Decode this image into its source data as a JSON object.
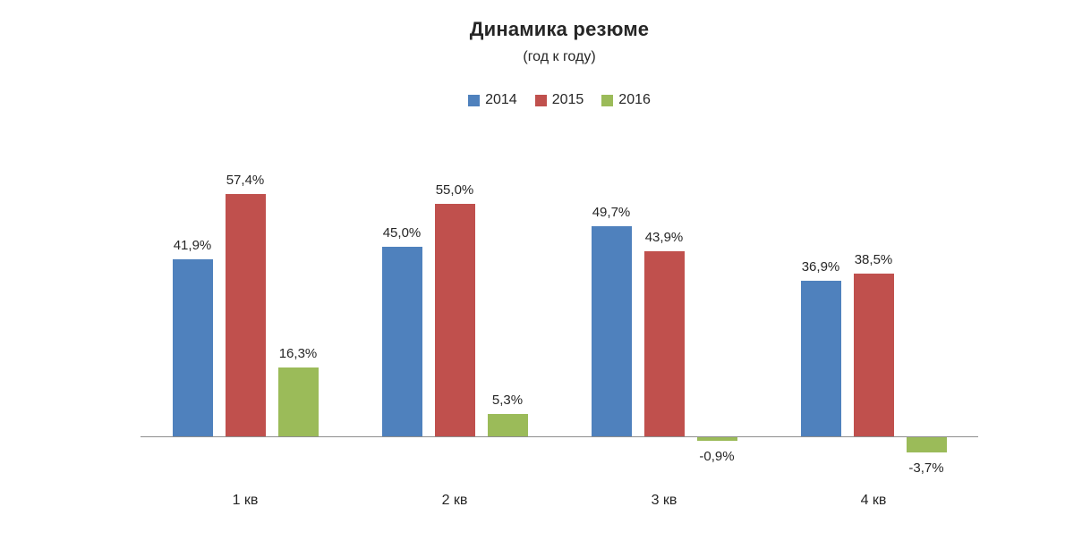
{
  "chart_data": {
    "type": "bar",
    "title": "Динамика резюме",
    "subtitle": "(год к году)",
    "categories": [
      "1 кв",
      "2 кв",
      "3 кв",
      "4 кв"
    ],
    "series": [
      {
        "name": "2014",
        "color": "#4F81BD",
        "values": [
          41.9,
          45.0,
          49.7,
          36.9
        ],
        "labels": [
          "41,9%",
          "45,0%",
          "49,7%",
          "36,9%"
        ]
      },
      {
        "name": "2015",
        "color": "#C0504D",
        "values": [
          57.4,
          55.0,
          43.9,
          38.5
        ],
        "labels": [
          "57,4%",
          "55,0%",
          "43,9%",
          "38,5%"
        ]
      },
      {
        "name": "2016",
        "color": "#9BBB59",
        "values": [
          16.3,
          5.3,
          -0.9,
          -3.7
        ],
        "labels": [
          "16,3%",
          "5,3%",
          "-0,9%",
          "-3,7%"
        ]
      }
    ],
    "ylim": [
      -10,
      70
    ],
    "grid": false,
    "legend_position": "top-center",
    "value_labels": true,
    "axis_line_color": "#8e8e8e",
    "text_color": "#262626",
    "background": "#ffffff"
  }
}
